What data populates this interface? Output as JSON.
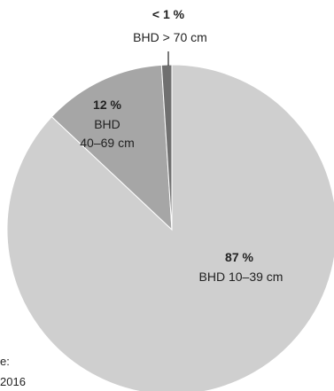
{
  "chart_data": {
    "type": "pie",
    "values": [
      87,
      12,
      1
    ],
    "slices": [
      {
        "percent_label": "87 %",
        "label_lines": [
          "BHD 10–39 cm"
        ],
        "value": 87,
        "color": "#cfcfcf"
      },
      {
        "percent_label": "12 %",
        "label_lines": [
          "BHD",
          "40–69 cm"
        ],
        "value": 12,
        "color": "#a6a6a6"
      },
      {
        "percent_label": "< 1 %",
        "label_lines": [
          "BHD > 70 cm"
        ],
        "value": 1,
        "color": "#707070"
      }
    ]
  },
  "source": {
    "lines": [
      "e:",
      "2016"
    ]
  }
}
